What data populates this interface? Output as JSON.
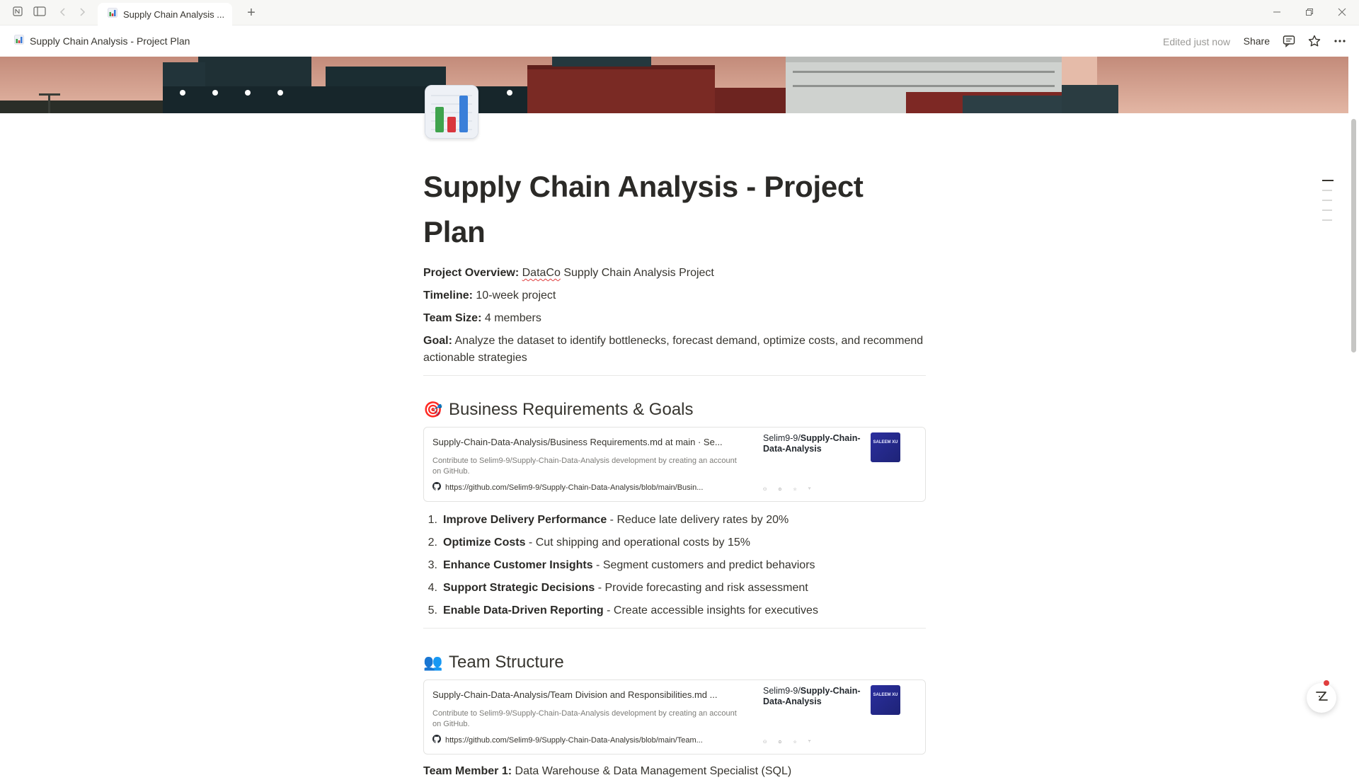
{
  "window": {
    "tab_title": "Supply Chain Analysis ...",
    "new_tab_icon": "plus-icon"
  },
  "toolbar": {
    "breadcrumb": "Supply Chain Analysis - Project Plan",
    "edited": "Edited just now",
    "share_label": "Share"
  },
  "page": {
    "title": "Supply Chain Analysis - Project Plan",
    "properties": [
      {
        "label": "Project Overview:",
        "value_pre": "DataCo",
        "value": " Supply Chain Analysis Project"
      },
      {
        "label": "Timeline:",
        "value": " 10-week project"
      },
      {
        "label": "Team Size:",
        "value": " 4 members"
      },
      {
        "label": "Goal:",
        "value": " Analyze the dataset to identify bottlenecks, forecast demand, optimize costs, and recommend actionable strategies"
      }
    ]
  },
  "sections": {
    "business": {
      "emoji": "🎯",
      "heading": "Business Requirements & Goals",
      "bookmark": {
        "title": "Supply-Chain-Data-Analysis/Business Requirements.md at main · Se...",
        "description": "Contribute to Selim9-9/Supply-Chain-Data-Analysis development by creating an account on GitHub.",
        "url": "https://github.com/Selim9-9/Supply-Chain-Data-Analysis/blob/main/Busin...",
        "repo_owner": "Selim9-9/",
        "repo_name": "Supply-Chain-Data-Analysis",
        "logo_text": "SALEEM XU"
      },
      "goals": [
        {
          "num": "1.",
          "name": "Improve Delivery Performance",
          "desc": " - Reduce late delivery rates by 20%"
        },
        {
          "num": "2.",
          "name": "Optimize Costs",
          "desc": " - Cut shipping and operational costs by 15%"
        },
        {
          "num": "3.",
          "name": "Enhance Customer Insights",
          "desc": " - Segment customers and predict behaviors"
        },
        {
          "num": "4.",
          "name": "Support Strategic Decisions",
          "desc": " - Provide forecasting and risk assessment"
        },
        {
          "num": "5.",
          "name": "Enable Data-Driven Reporting",
          "desc": " - Create accessible insights for executives"
        }
      ]
    },
    "team": {
      "emoji": "👥",
      "heading": "Team Structure",
      "bookmark": {
        "title": "Supply-Chain-Data-Analysis/Team Division and Responsibilities.md ...",
        "description": "Contribute to Selim9-9/Supply-Chain-Data-Analysis development by creating an account on GitHub.",
        "url": "https://github.com/Selim9-9/Supply-Chain-Data-Analysis/blob/main/Team...",
        "repo_owner": "Selim9-9/",
        "repo_name": "Supply-Chain-Data-Analysis",
        "logo_text": "SALEEM XU"
      },
      "member1_label": "Team Member 1:",
      "member1_value": " Data Warehouse & Data Management Specialist (SQL)"
    }
  },
  "colors": {
    "text": "#37352f",
    "muted": "#9b9a97",
    "accent_red": "#e03e3e"
  }
}
